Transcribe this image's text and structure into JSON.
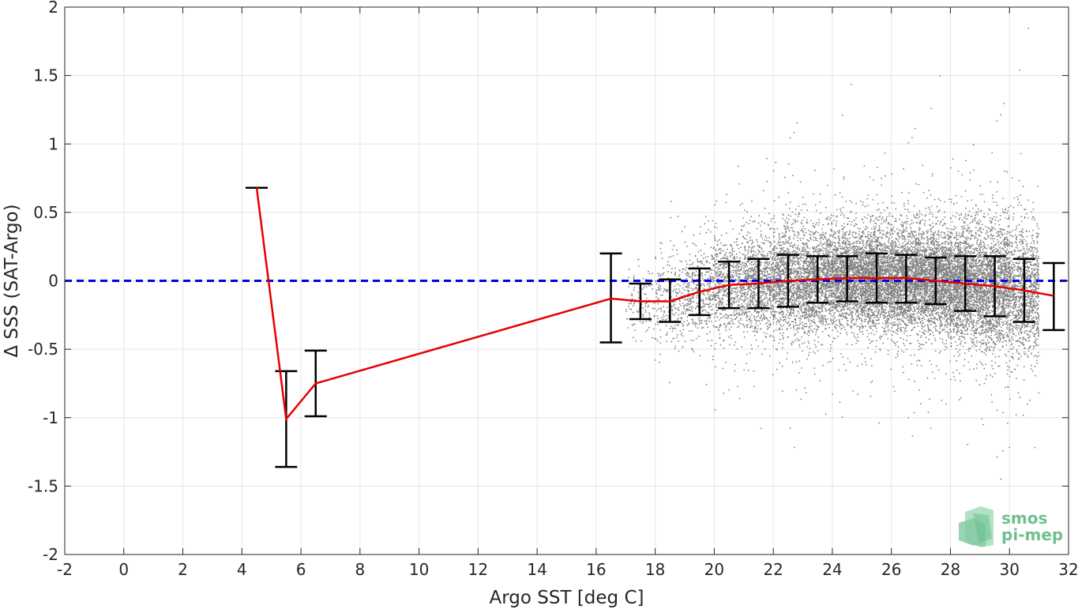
{
  "chart_data": {
    "type": "scatter",
    "title": "",
    "xlabel": "Argo SST [deg C]",
    "ylabel": "Δ SSS (SAT-Argo)",
    "xlim": [
      -2,
      32
    ],
    "ylim": [
      -2,
      2
    ],
    "xticks": [
      -2,
      0,
      2,
      4,
      6,
      8,
      10,
      12,
      14,
      16,
      18,
      20,
      22,
      24,
      26,
      28,
      30,
      32
    ],
    "xtick_labels": [
      "-2",
      "0",
      "2",
      "4",
      "6",
      "8",
      "10",
      "12",
      "14",
      "16",
      "18",
      "20",
      "22",
      "24",
      "26",
      "28",
      "30",
      "32"
    ],
    "yticks": [
      2,
      1.5,
      1,
      0.5,
      0,
      -0.5,
      -1,
      -1.5,
      -2
    ],
    "ytick_labels": [
      "2",
      "1.5",
      "1",
      "0.5",
      "0",
      "-0.5",
      "-1",
      "-1.5",
      "-2"
    ],
    "grid": true,
    "zero_line": {
      "y": 0,
      "style": "dashed",
      "color": "#0000e6"
    },
    "series": [
      {
        "kind": "scatter",
        "color": "#808080",
        "density_bins": [
          {
            "x": 16.5,
            "mean": -0.13,
            "std": 0.2,
            "weight": 0
          },
          {
            "x": 17.5,
            "mean": -0.15,
            "std": 0.12,
            "weight": 3
          },
          {
            "x": 18.5,
            "mean": -0.15,
            "std": 0.16,
            "weight": 6
          },
          {
            "x": 19.5,
            "mean": -0.08,
            "std": 0.17,
            "weight": 10
          },
          {
            "x": 20.5,
            "mean": -0.03,
            "std": 0.18,
            "weight": 16
          },
          {
            "x": 21.5,
            "mean": -0.02,
            "std": 0.18,
            "weight": 22
          },
          {
            "x": 22.5,
            "mean": 0.0,
            "std": 0.19,
            "weight": 28
          },
          {
            "x": 23.5,
            "mean": 0.01,
            "std": 0.18,
            "weight": 34
          },
          {
            "x": 24.5,
            "mean": 0.02,
            "std": 0.17,
            "weight": 40
          },
          {
            "x": 25.5,
            "mean": 0.02,
            "std": 0.18,
            "weight": 44
          },
          {
            "x": 26.5,
            "mean": 0.02,
            "std": 0.18,
            "weight": 46
          },
          {
            "x": 27.5,
            "mean": 0.0,
            "std": 0.18,
            "weight": 46
          },
          {
            "x": 28.5,
            "mean": -0.02,
            "std": 0.2,
            "weight": 44
          },
          {
            "x": 29.5,
            "mean": -0.04,
            "std": 0.22,
            "weight": 40
          },
          {
            "x": 30.5,
            "mean": -0.07,
            "std": 0.23,
            "weight": 28
          }
        ]
      },
      {
        "kind": "line",
        "color": "#e60000",
        "x": [
          4.5,
          5.5,
          6.5,
          16.5,
          17.5,
          18.5,
          19.5,
          20.5,
          21.5,
          22.5,
          23.5,
          24.5,
          25.5,
          26.5,
          27.5,
          28.5,
          29.5,
          30.5,
          31.5
        ],
        "y": [
          0.68,
          -1.01,
          -0.75,
          -0.13,
          -0.15,
          -0.15,
          -0.08,
          -0.03,
          -0.02,
          0.0,
          0.01,
          0.02,
          0.02,
          0.02,
          0.0,
          -0.02,
          -0.04,
          -0.07,
          -0.11
        ]
      },
      {
        "kind": "errorbar",
        "color": "#000000",
        "x": [
          4.5,
          5.5,
          6.5,
          16.5,
          17.5,
          18.5,
          19.5,
          20.5,
          21.5,
          22.5,
          23.5,
          24.5,
          25.5,
          26.5,
          27.5,
          28.5,
          29.5,
          30.5,
          31.5
        ],
        "low": [
          0.68,
          -1.36,
          -0.99,
          -0.45,
          -0.28,
          -0.3,
          -0.25,
          -0.2,
          -0.2,
          -0.19,
          -0.16,
          -0.15,
          -0.16,
          -0.16,
          -0.17,
          -0.22,
          -0.26,
          -0.3,
          -0.36
        ],
        "high": [
          0.68,
          -0.66,
          -0.51,
          0.2,
          -0.02,
          0.01,
          0.09,
          0.14,
          0.16,
          0.19,
          0.18,
          0.18,
          0.2,
          0.19,
          0.17,
          0.18,
          0.18,
          0.16,
          0.13
        ]
      }
    ]
  },
  "logo": {
    "line1": "smos",
    "line2": "pi-mep",
    "color": "#6fbf8f"
  }
}
